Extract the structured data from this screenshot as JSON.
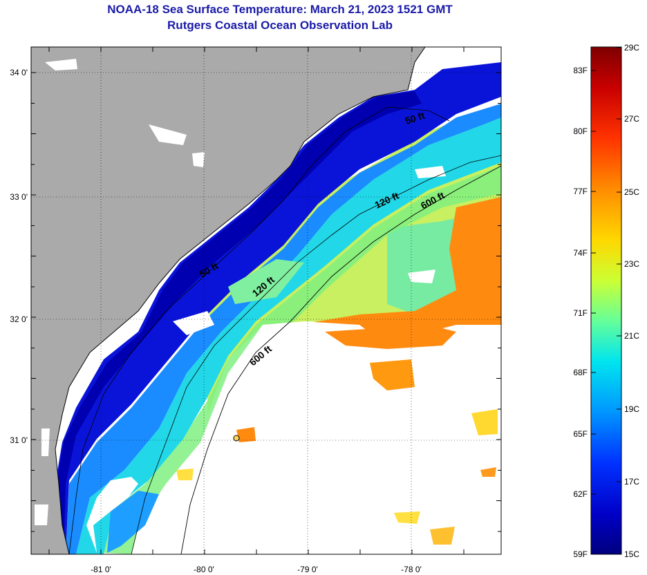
{
  "title": {
    "line1": "NOAA-18 Sea Surface Temperature:  March 21, 2023 1521 GMT",
    "line2": "Rutgers Coastal Ocean Observation Lab"
  },
  "map": {
    "lon_labels": [
      "-81 0'",
      "-80 0'",
      "-79 0'",
      "-78 0'"
    ],
    "lat_labels": [
      "34 0'",
      "33 0'",
      "32 0'",
      "31 0'"
    ],
    "depth_contours": [
      "50 ft",
      "120 ft",
      "600 ft",
      "50 ft",
      "120 ft",
      "600 ft"
    ]
  },
  "colorbar": {
    "fahrenheit_labels": [
      "83F",
      "80F",
      "77F",
      "74F",
      "71F",
      "68F",
      "65F",
      "62F",
      "59F"
    ],
    "celsius_labels": [
      "29C",
      "27C",
      "25C",
      "23C",
      "21C",
      "19C",
      "17C",
      "15C"
    ],
    "colors": [
      "#7f0000",
      "#d40000",
      "#ff3300",
      "#ff8c00",
      "#ffd700",
      "#d4ff2a",
      "#66ff99",
      "#00e5ee",
      "#0096ff",
      "#0032ff",
      "#0000c8",
      "#00007f"
    ]
  }
}
